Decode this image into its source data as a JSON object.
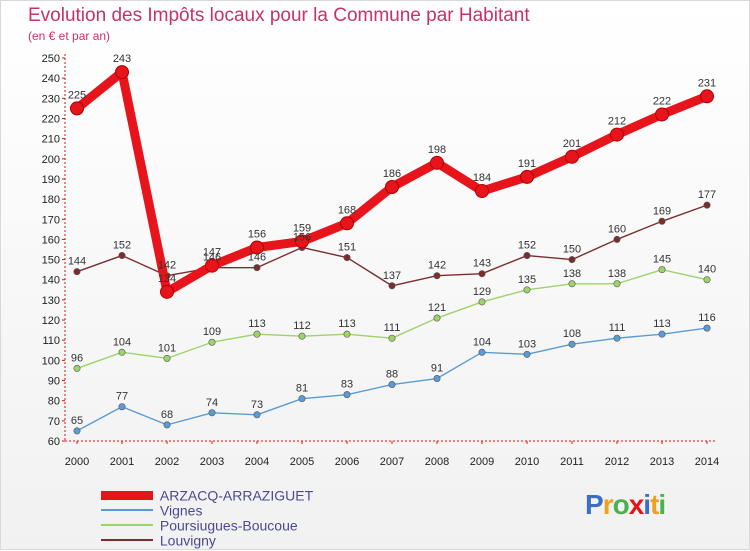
{
  "header": {
    "title": "Evolution des Impôts locaux pour la Commune par Habitant",
    "subtitle": "(en € et par an)"
  },
  "chart_data": {
    "type": "line",
    "title": "Evolution des Impôts locaux pour la Commune par Habitant",
    "subtitle": "(en € et par an)",
    "xlabel": "",
    "ylabel": "",
    "ylim": [
      60,
      250
    ],
    "yticks": [
      60,
      70,
      80,
      90,
      100,
      110,
      120,
      130,
      140,
      150,
      160,
      170,
      180,
      190,
      200,
      210,
      220,
      230,
      240,
      250
    ],
    "categories": [
      "2000",
      "2001",
      "2002",
      "2003",
      "2004",
      "2005",
      "2006",
      "2007",
      "2008",
      "2009",
      "2010",
      "2011",
      "2012",
      "2013",
      "2014"
    ],
    "grid": false,
    "legend_position": "bottom-left",
    "series": [
      {
        "name": "ARZACQ-ARRAZIGUET",
        "color": "#e8141b",
        "bold": true,
        "values": [
          225,
          243,
          134,
          147,
          156,
          159,
          168,
          186,
          198,
          184,
          191,
          201,
          212,
          222,
          231
        ],
        "labels": [
          "225",
          "243",
          "134",
          "147",
          "156",
          "159",
          "168",
          "186",
          "198",
          "184",
          "191",
          "201",
          "212",
          "222",
          "231"
        ]
      },
      {
        "name": "Vignes",
        "color": "#5b9bd5",
        "bold": false,
        "values": [
          65,
          77,
          68,
          74,
          73,
          81,
          83,
          88,
          91,
          104,
          103,
          108,
          111,
          113,
          116
        ],
        "labels": [
          "65",
          "77",
          "68",
          "74",
          "73",
          "81",
          "83",
          "88",
          "91",
          "104",
          "103",
          "108",
          "111",
          "113",
          "116"
        ]
      },
      {
        "name": "Poursiugues-Boucoue",
        "color": "#9ed36a",
        "bold": false,
        "values": [
          96,
          104,
          101,
          109,
          113,
          112,
          113,
          111,
          121,
          129,
          135,
          138,
          138,
          145,
          140
        ],
        "labels": [
          "96",
          "104",
          "101",
          "109",
          "113",
          "112",
          "113",
          "111",
          "121",
          "129",
          "135",
          "138",
          "138",
          "145",
          "140"
        ]
      },
      {
        "name": "Louvigny",
        "color": "#7b2e2e",
        "bold": false,
        "values": [
          144,
          152,
          142,
          146,
          146,
          156,
          151,
          137,
          142,
          143,
          152,
          150,
          160,
          169,
          177
        ],
        "labels": [
          "144",
          "152",
          "142",
          "146",
          "146",
          "156",
          "151",
          "137",
          "142",
          "143",
          "152",
          "150",
          "160",
          "169",
          "177"
        ]
      }
    ]
  },
  "legend": {
    "items": [
      {
        "label": "ARZACQ-ARRAZIGUET",
        "color": "#e8141b"
      },
      {
        "label": "Vignes",
        "color": "#5b9bd5"
      },
      {
        "label": "Poursiugues-Boucoue",
        "color": "#9ed36a"
      },
      {
        "label": "Louvigny",
        "color": "#7b2e2e"
      }
    ]
  },
  "logo": {
    "letters": [
      "P",
      "r",
      "o",
      "x",
      "i",
      "t",
      "i"
    ],
    "colors": [
      "#3a6fc4",
      "#f0a020",
      "#4caf50",
      "#e8141b",
      "#3a6fc4",
      "#f0a020",
      "#4caf50"
    ]
  }
}
